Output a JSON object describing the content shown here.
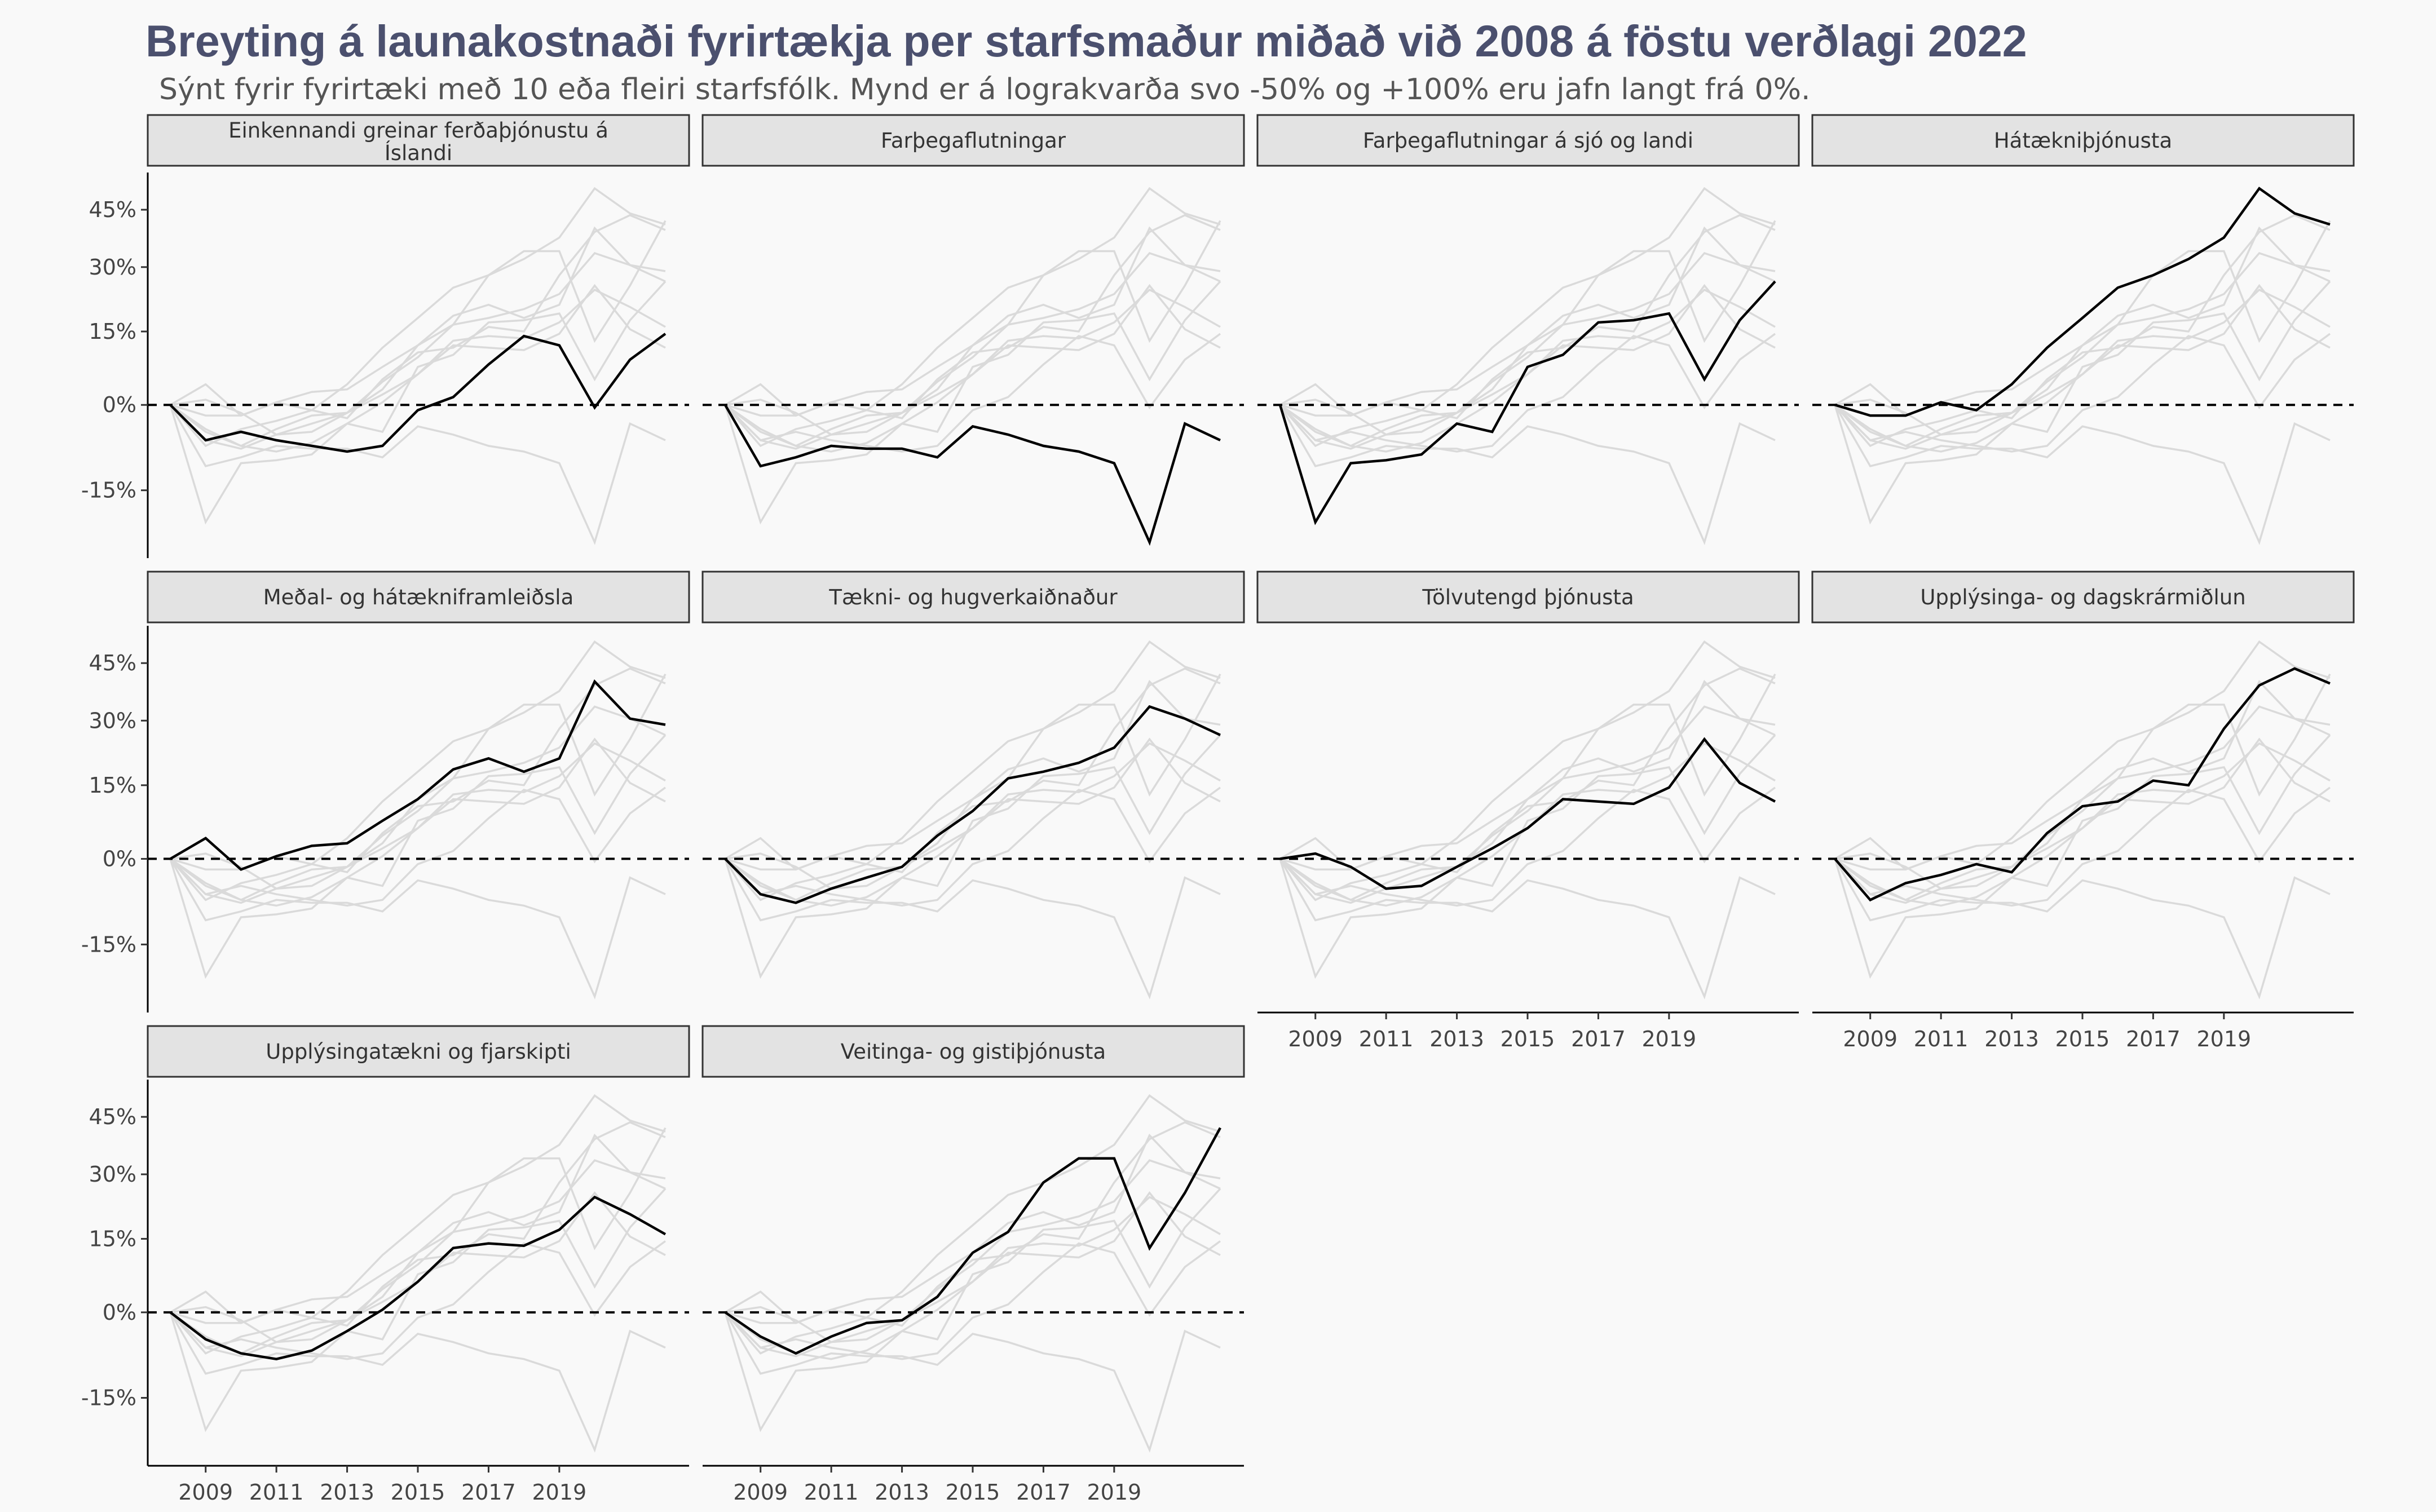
{
  "chart_data": {
    "type": "line",
    "title": "Breyting á launakostnaði fyrirtækja per starfsmaður miðað við 2008 á föstu verðlagi 2022",
    "subtitle": "Sýnt fyrir fyrirtæki með 10 eða fleiri starfsfólk. Mynd er á lograkvarða svo -50% og +100% eru jafn langt frá 0%.",
    "xlabel": "",
    "ylabel": "",
    "y_scale": "log",
    "y_ticks": [
      "45%",
      "30%",
      "15%",
      "0%",
      "-15%"
    ],
    "x_ticks": [
      "2009",
      "2011",
      "2013",
      "2015",
      "2017",
      "2019"
    ],
    "x": [
      2008,
      2009,
      2010,
      2011,
      2012,
      2013,
      2014,
      2015,
      2016,
      2017,
      2018,
      2019,
      2020,
      2021,
      2022
    ],
    "reference_line": "0%",
    "background_series_color": "#dadada",
    "highlight_color": "#000000",
    "facet_strip_color": "#e3e3e3",
    "title_color": "#4b506e",
    "series": [
      {
        "name": "Einkennandi greinar ferðaþjónustu á Íslandi",
        "values": [
          0,
          -6.5,
          -5,
          -6.5,
          -7.5,
          -8.5,
          -7.5,
          -1,
          1.5,
          8,
          14,
          12,
          -0.5,
          9,
          14.5
        ]
      },
      {
        "name": "Farþegaflutningar",
        "values": [
          0,
          -11,
          -9.5,
          -7.5,
          -8,
          -8,
          -9.5,
          -4,
          -5.5,
          -7.5,
          -8.5,
          -10.5,
          -23,
          -3.5,
          -6.5
        ]
      },
      {
        "name": "Farþegaflutningar á sjó og landi",
        "values": [
          0,
          -20,
          -10.5,
          -10,
          -9,
          -3.5,
          -5,
          7.5,
          10,
          17,
          17.5,
          19,
          5,
          17.5,
          26.5
        ]
      },
      {
        "name": "Hátækniþjónusta",
        "values": [
          0,
          -2,
          -2,
          0.5,
          -1,
          4,
          11.5,
          18,
          25,
          28,
          32,
          37.5,
          51,
          44,
          41
        ]
      },
      {
        "name": "Meðal- og hátækniframleiðsla",
        "values": [
          0,
          4,
          -2,
          0.5,
          2.5,
          3,
          7.5,
          12,
          18.5,
          21,
          18,
          21,
          40,
          30.5,
          29
        ]
      },
      {
        "name": "Tækni- og hugverkaiðnaður",
        "values": [
          0,
          -6.5,
          -8,
          -5.5,
          -3.5,
          -1.5,
          4.5,
          9.5,
          16.5,
          18,
          20,
          23.5,
          33.5,
          30.5,
          26.5
        ]
      },
      {
        "name": "Tölvutengd þjónusta",
        "values": [
          0,
          1,
          -1.5,
          -5.5,
          -5,
          -1.5,
          2,
          6,
          12,
          11.5,
          11,
          14.5,
          25.5,
          15.5,
          11.5
        ]
      },
      {
        "name": "Upplýsinga- og dagskrármiðlun",
        "values": [
          0,
          -7.5,
          -4.5,
          -3,
          -1,
          -2.5,
          5,
          10.5,
          11.5,
          16,
          15,
          28,
          39,
          43.5,
          39.5
        ]
      },
      {
        "name": "Upplýsingatækni og fjarskipti",
        "values": [
          0,
          -5,
          -7.5,
          -8.5,
          -7,
          -3.5,
          0.5,
          6,
          13,
          14,
          13.5,
          17,
          24.5,
          20.5,
          16
        ]
      },
      {
        "name": "Veitinga- og gistiþjónusta",
        "values": [
          0,
          -4.5,
          -7.5,
          -4.5,
          -2,
          -1.5,
          3,
          12,
          16.5,
          28,
          34,
          34,
          13,
          25.5,
          42
        ]
      }
    ]
  }
}
